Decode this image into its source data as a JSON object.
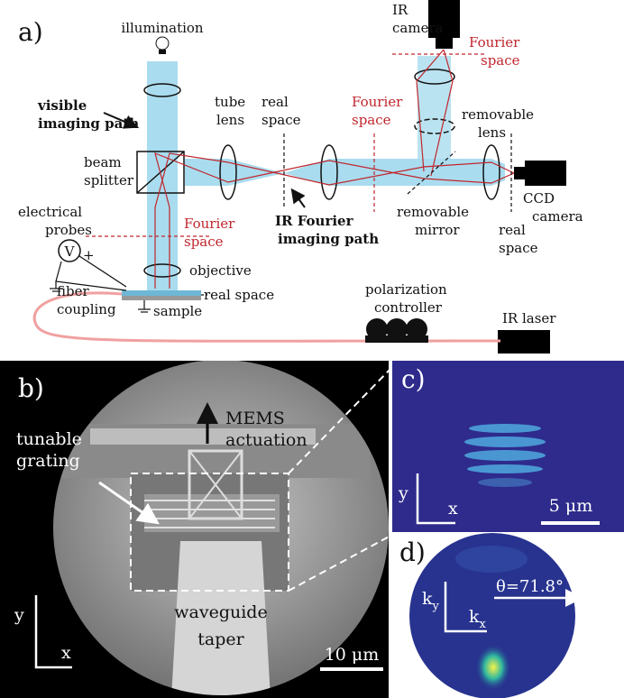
{
  "panel_a": {
    "label": "a)",
    "illumination": "illumination",
    "ir_camera": [
      "IR",
      "camera"
    ],
    "fourier_space_top": [
      "Fourier",
      "space"
    ],
    "visible_path": [
      "visible",
      "imaging path"
    ],
    "tube_lens": [
      "tube",
      "lens"
    ],
    "real_space_1": [
      "real",
      "space"
    ],
    "fourier_space_mid": [
      "Fourier",
      "space"
    ],
    "removable_lens": [
      "removable",
      "lens"
    ],
    "beam_splitter": [
      "beam",
      "splitter"
    ],
    "ir_fourier_path": [
      "IR Fourier",
      "imaging path"
    ],
    "removable_mirror": [
      "removable",
      "mirror"
    ],
    "ccd_camera": [
      "CCD",
      "camera"
    ],
    "real_space_2": [
      "real",
      "space"
    ],
    "electrical_probes": [
      "electrical",
      "probes"
    ],
    "voltmeter": "V",
    "plus": "+",
    "fourier_space_low": [
      "Fourier",
      "space"
    ],
    "objective": "objective",
    "real_space_3": "real space",
    "fiber_coupling": [
      "fiber",
      "coupling"
    ],
    "sample": "sample",
    "polarization_controller": [
      "polarization",
      "controller"
    ],
    "ir_laser": "IR laser"
  },
  "panel_b": {
    "label": "b)",
    "tunable_grating": [
      "tunable",
      "grating"
    ],
    "mems_actuation": [
      "MEMS",
      "actuation"
    ],
    "waveguide_taper": [
      "waveguide",
      "taper"
    ],
    "axis_y": "y",
    "axis_x": "x",
    "scale_bar": "10 μm"
  },
  "panel_c": {
    "label": "c)",
    "axis_y": "y",
    "axis_x": "x",
    "scale_bar": "5 μm"
  },
  "panel_d": {
    "label": "d)",
    "axis_ky": {
      "base": "k",
      "sub": "y"
    },
    "axis_kx": {
      "base": "k",
      "sub": "x"
    },
    "angle": "θ=71.8°"
  }
}
